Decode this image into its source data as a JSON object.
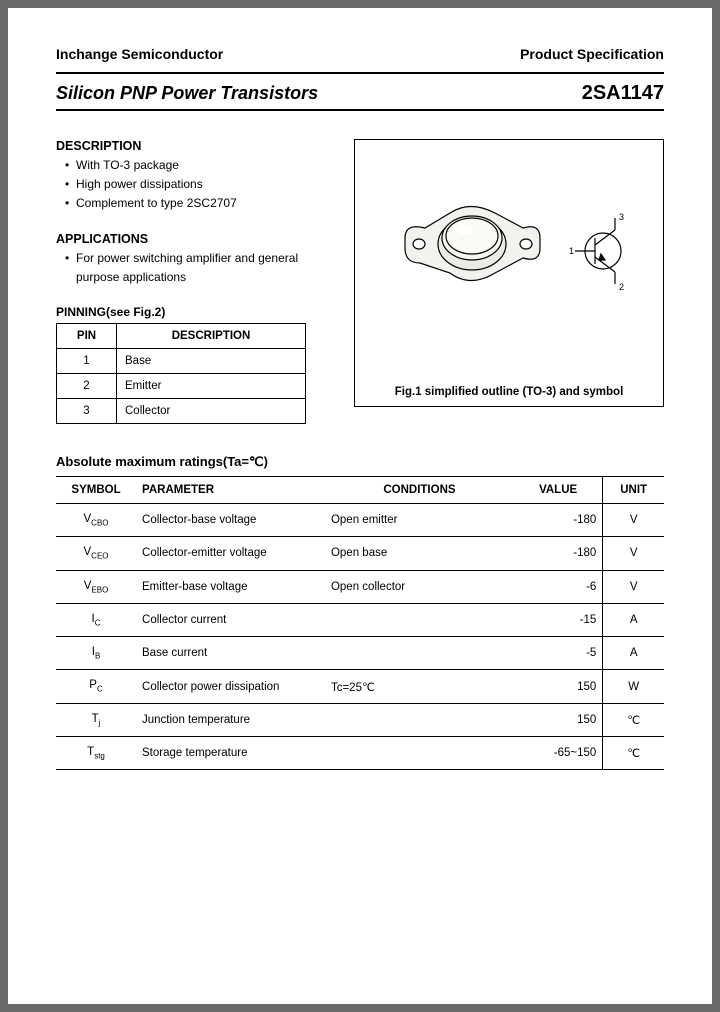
{
  "header": {
    "company": "Inchange Semiconductor",
    "doc_type": "Product Specification"
  },
  "title": {
    "left": "Silicon PNP Power Transistors",
    "right": "2SA1147"
  },
  "description": {
    "heading": "DESCRIPTION",
    "items": [
      "With TO-3 package",
      "High power dissipations",
      "Complement to type 2SC2707"
    ]
  },
  "applications": {
    "heading": "APPLICATIONS",
    "items": [
      "For power switching amplifier and general purpose applications"
    ]
  },
  "pinning": {
    "heading": "PINNING(see Fig.2)",
    "cols": [
      "PIN",
      "DESCRIPTION"
    ],
    "rows": [
      {
        "pin": "1",
        "desc": "Base"
      },
      {
        "pin": "2",
        "desc": "Emitter"
      },
      {
        "pin": "3",
        "desc": "Collector"
      }
    ]
  },
  "figure": {
    "caption": "Fig.1 simplified outline (TO-3) and symbol",
    "pins": {
      "base": "1",
      "emitter": "2",
      "collector": "3"
    }
  },
  "abs": {
    "heading": "Absolute maximum ratings(Ta=℃)",
    "cols": [
      "SYMBOL",
      "PARAMETER",
      "CONDITIONS",
      "VALUE",
      "UNIT"
    ],
    "rows": [
      {
        "sym": "V",
        "sub": "CBO",
        "par": "Collector-base voltage",
        "con": "Open emitter",
        "val": "-180",
        "unit": "V"
      },
      {
        "sym": "V",
        "sub": "CEO",
        "par": "Collector-emitter voltage",
        "con": "Open base",
        "val": "-180",
        "unit": "V"
      },
      {
        "sym": "V",
        "sub": "EBO",
        "par": "Emitter-base voltage",
        "con": "Open collector",
        "val": "-6",
        "unit": "V"
      },
      {
        "sym": "I",
        "sub": "C",
        "par": "Collector current",
        "con": "",
        "val": "-15",
        "unit": "A"
      },
      {
        "sym": "I",
        "sub": "B",
        "par": "Base current",
        "con": "",
        "val": "-5",
        "unit": "A"
      },
      {
        "sym": "P",
        "sub": "C",
        "par": "Collector power dissipation",
        "con": "Tc=25℃",
        "val": "150",
        "unit": "W"
      },
      {
        "sym": "T",
        "sub": "j",
        "par": "Junction temperature",
        "con": "",
        "val": "150",
        "unit": "℃"
      },
      {
        "sym": "T",
        "sub": "stg",
        "par": "Storage temperature",
        "con": "",
        "val": "-65~150",
        "unit": "℃"
      }
    ]
  },
  "colors": {
    "page_bg": "#ffffff",
    "outer_bg": "#6a6a6a",
    "text": "#000000"
  }
}
